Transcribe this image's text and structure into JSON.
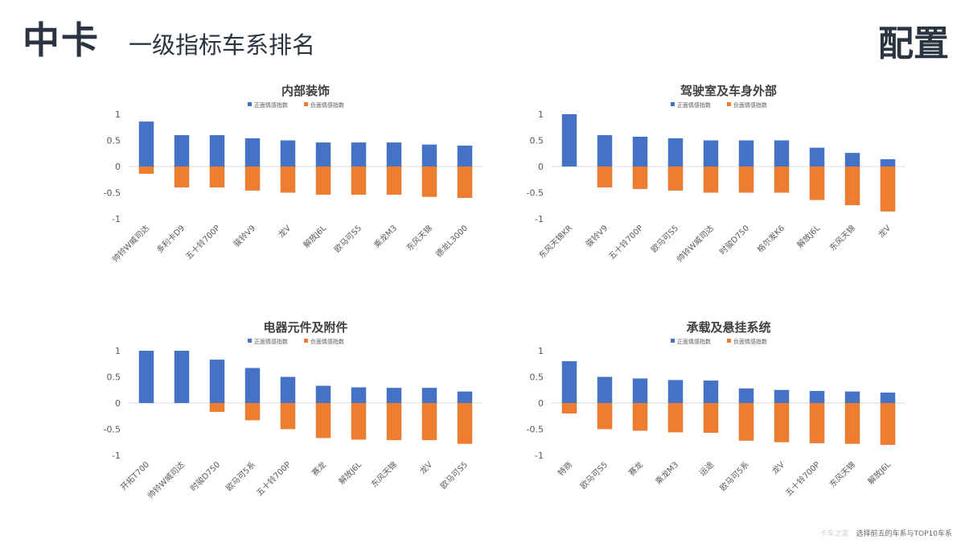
{
  "header": {
    "title": "中卡",
    "subtitle": "一级指标车系排名",
    "right": "配置"
  },
  "footer": {
    "watermark": "卡车之家",
    "note": "选择前五的车系与TOP10车系"
  },
  "colors": {
    "positive": "#4472c4",
    "negative": "#ed7d31",
    "axis_text": "#595959",
    "title": "#404040",
    "zero_line": "#d9d9d9"
  },
  "chart_data": [
    {
      "type": "bar",
      "title": "内部装饰",
      "legend": [
        "正面情感指数",
        "负面情感指数"
      ],
      "ylim": [
        -1,
        1
      ],
      "yticks": [
        "1",
        "0.5",
        "0",
        "-0.5",
        "-1"
      ],
      "categories": [
        "帅铃W威司达",
        "多利卡D9",
        "五十铃700P",
        "骏铃V9",
        "龙V",
        "解放J6L",
        "欧马可S5",
        "乘龙M3",
        "东风天锦",
        "德龙L3000"
      ],
      "series": [
        {
          "name": "正面情感指数",
          "values": [
            0.86,
            0.6,
            0.6,
            0.54,
            0.5,
            0.46,
            0.46,
            0.46,
            0.42,
            0.4
          ]
        },
        {
          "name": "负面情感指数",
          "values": [
            -0.14,
            -0.4,
            -0.4,
            -0.46,
            -0.5,
            -0.54,
            -0.54,
            -0.54,
            -0.58,
            -0.6
          ]
        }
      ]
    },
    {
      "type": "bar",
      "title": "驾驶室及车身外部",
      "legend": [
        "正面情感指数",
        "负面情感指数"
      ],
      "ylim": [
        -1,
        1
      ],
      "yticks": [
        "1",
        "0.5",
        "0",
        "-0.5",
        "-1"
      ],
      "categories": [
        "东风天锦KR",
        "骏铃V9",
        "五十铃700P",
        "欧马可S5",
        "帅铃W威司达",
        "时骏D750",
        "格尔发K6",
        "解放J6L",
        "东风天锦",
        "龙V"
      ],
      "series": [
        {
          "name": "正面情感指数",
          "values": [
            1.0,
            0.6,
            0.57,
            0.54,
            0.5,
            0.5,
            0.5,
            0.36,
            0.26,
            0.14
          ]
        },
        {
          "name": "负面情感指数",
          "values": [
            0,
            -0.4,
            -0.43,
            -0.46,
            -0.5,
            -0.5,
            -0.5,
            -0.64,
            -0.74,
            -0.86
          ]
        }
      ]
    },
    {
      "type": "bar",
      "title": "电器元件及附件",
      "legend": [
        "正面情感指数",
        "负面情感指数"
      ],
      "ylim": [
        -1,
        1
      ],
      "yticks": [
        "1",
        "0.5",
        "0",
        "-0.5",
        "-1"
      ],
      "categories": [
        "开拓T700",
        "帅铃W威司达",
        "时骏D750",
        "欧马可5系",
        "五十铃700P",
        "赛龙",
        "解放J6L",
        "东风天锦",
        "龙V",
        "欧马可S5"
      ],
      "series": [
        {
          "name": "正面情感指数",
          "values": [
            1.0,
            1.0,
            0.83,
            0.67,
            0.5,
            0.33,
            0.3,
            0.29,
            0.29,
            0.22
          ]
        },
        {
          "name": "负面情感指数",
          "values": [
            0,
            0,
            -0.17,
            -0.33,
            -0.5,
            -0.67,
            -0.7,
            -0.71,
            -0.71,
            -0.78
          ]
        }
      ]
    },
    {
      "type": "bar",
      "title": "承载及悬挂系统",
      "legend": [
        "正面情感指数",
        "负面情感指数"
      ],
      "ylim": [
        -1,
        1
      ],
      "yticks": [
        "1",
        "0.5",
        "0",
        "-0.5",
        "-1"
      ],
      "categories": [
        "特商",
        "欧马可S5",
        "赛龙",
        "乘龙M3",
        "运途",
        "欧马可5系",
        "龙V",
        "五十铃700P",
        "东风天锦",
        "解放J6L"
      ],
      "series": [
        {
          "name": "正面情感指数",
          "values": [
            0.8,
            0.5,
            0.47,
            0.44,
            0.43,
            0.28,
            0.25,
            0.23,
            0.22,
            0.2
          ]
        },
        {
          "name": "负面情感指数",
          "values": [
            -0.2,
            -0.5,
            -0.53,
            -0.56,
            -0.57,
            -0.72,
            -0.75,
            -0.77,
            -0.78,
            -0.8
          ]
        }
      ]
    }
  ]
}
